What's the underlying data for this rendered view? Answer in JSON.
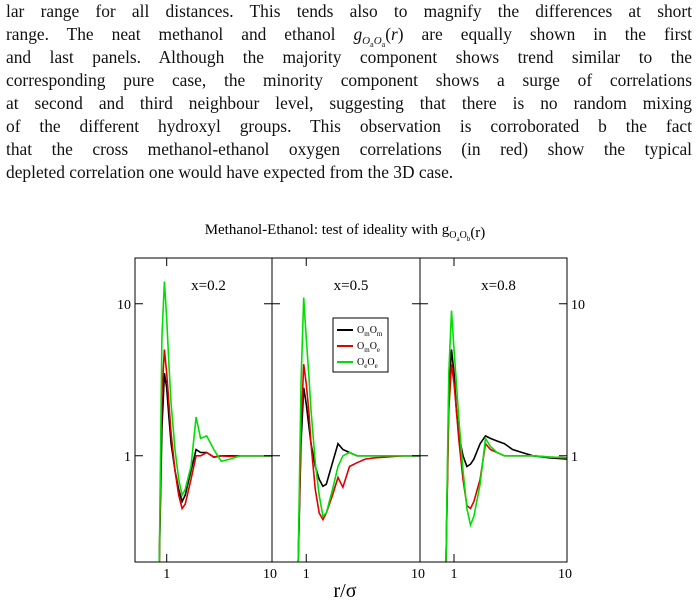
{
  "paragraph": {
    "line1": "lar range for all distances. This tends also to magnify the differences at short",
    "line2": {
      "before": "range. The neat methanol and ethanol",
      "g": "g",
      "o1": "O",
      "s1": "a",
      "o2": "O",
      "s2": "a",
      "open": "(",
      "r": "r",
      "close": ")",
      "after": "are equally shown in the first"
    },
    "line3": "and last panels. Although the majority component shows trend similar to the",
    "line4": "corresponding pure case, the minority component shows a surge of correlations",
    "line5": "at second and third neighbour level, suggesting that there is no random mixing",
    "line6": "of the different hydroxyl groups. This observation is corroborated b the fact",
    "line7": "that the cross methanol-ethanol oxygen correlations (in red) show the typical",
    "line8": "depleted correlation one would have expected from the 3D case."
  },
  "figure": {
    "title": "Methanol-Ethanol: test of ideality with g",
    "title_sub": [
      "O",
      "a",
      "O",
      "b"
    ],
    "title_end": "(r)",
    "xlabel": "r/σ"
  },
  "chart_data": [
    {
      "type": "line",
      "annotation": "x=0.2",
      "log_x": true,
      "log_y": true,
      "x": [
        0.85,
        0.9,
        0.95,
        1.0,
        1.05,
        1.1,
        1.2,
        1.3,
        1.4,
        1.5,
        1.7,
        1.9,
        2.1,
        2.4,
        2.8,
        3.3,
        4,
        5,
        7,
        10
      ],
      "xlim": [
        0.5,
        10
      ],
      "ylim": [
        0.2,
        20
      ],
      "xticks": [
        1,
        10
      ],
      "yticks": [
        1,
        10
      ],
      "ytick_side": "left",
      "series": [
        {
          "color": "#000000",
          "values": [
            0.2,
            1.5,
            3.5,
            2.8,
            1.8,
            1.2,
            0.8,
            0.6,
            0.5,
            0.55,
            0.8,
            1.1,
            1.05,
            1.05,
            0.98,
            1.0,
            1.0,
            1.0,
            1.0,
            1.0
          ]
        },
        {
          "color": "#e00000",
          "values": [
            0.2,
            2.5,
            5.0,
            3.5,
            2.2,
            1.4,
            0.8,
            0.55,
            0.45,
            0.48,
            0.7,
            1.0,
            1.0,
            1.05,
            0.98,
            1.0,
            0.99,
            1.0,
            1.0,
            1.0
          ]
        },
        {
          "color": "#00e000",
          "values": [
            0.2,
            6,
            14,
            8,
            4,
            2.2,
            1.1,
            0.7,
            0.55,
            0.6,
            0.85,
            1.8,
            1.3,
            1.35,
            1.1,
            0.92,
            0.95,
            1.0,
            1.0,
            1.0
          ]
        }
      ]
    },
    {
      "type": "line",
      "annotation": "x=0.5",
      "log_x": true,
      "log_y": true,
      "legend": "upper right",
      "x": [
        0.85,
        0.9,
        0.95,
        1.0,
        1.05,
        1.1,
        1.2,
        1.3,
        1.4,
        1.5,
        1.7,
        1.9,
        2.1,
        2.4,
        2.8,
        3.3,
        4,
        5,
        7,
        10
      ],
      "xlim": [
        0.5,
        10
      ],
      "ylim": [
        0.2,
        20
      ],
      "xticks": [
        1,
        10
      ],
      "yticks": [
        1,
        10
      ],
      "series": [
        {
          "name": "OmOm",
          "color": "#000000",
          "values": [
            0.2,
            1.2,
            2.8,
            2.2,
            1.6,
            1.2,
            0.85,
            0.7,
            0.63,
            0.65,
            0.9,
            1.2,
            1.1,
            1.05,
            1.0,
            1.0,
            1.0,
            1.0,
            1.0,
            1.0
          ]
        },
        {
          "name": "OmOe",
          "color": "#e00000",
          "values": [
            0.2,
            1.5,
            4.0,
            3.0,
            2.0,
            1.2,
            0.6,
            0.42,
            0.38,
            0.42,
            0.55,
            0.72,
            0.62,
            0.85,
            0.9,
            0.95,
            0.97,
            0.98,
            1.0,
            1.0
          ]
        },
        {
          "name": "OeOe",
          "color": "#00e000",
          "values": [
            0.2,
            3,
            11,
            6,
            3.5,
            2.0,
            0.9,
            0.55,
            0.4,
            0.42,
            0.6,
            0.85,
            1.0,
            1.05,
            1.0,
            1.0,
            1.0,
            1.0,
            1.0,
            1.0
          ]
        }
      ]
    },
    {
      "type": "line",
      "annotation": "x=0.8",
      "log_x": true,
      "log_y": true,
      "x": [
        0.85,
        0.9,
        0.95,
        1.0,
        1.05,
        1.1,
        1.2,
        1.3,
        1.4,
        1.5,
        1.7,
        1.9,
        2.1,
        2.4,
        2.8,
        3.3,
        4,
        5,
        7,
        10
      ],
      "xlim": [
        0.5,
        10
      ],
      "ylim": [
        0.2,
        20
      ],
      "xticks": [
        1,
        10
      ],
      "yticks": [
        1,
        10
      ],
      "ytick_side": "right",
      "series": [
        {
          "color": "#000000",
          "values": [
            0.2,
            2.5,
            5,
            3.5,
            2.0,
            1.4,
            1.0,
            0.85,
            0.88,
            0.95,
            1.2,
            1.35,
            1.3,
            1.25,
            1.2,
            1.1,
            1.05,
            1.0,
            0.97,
            0.95
          ]
        },
        {
          "color": "#e00000",
          "values": [
            0.2,
            2,
            4,
            3,
            2,
            1.3,
            0.7,
            0.47,
            0.45,
            0.5,
            0.7,
            1.2,
            1.1,
            1.05,
            1.0,
            1.0,
            1.0,
            1.0,
            0.98,
            0.97
          ]
        },
        {
          "color": "#00e000",
          "values": [
            0.2,
            3.5,
            9,
            5,
            3,
            1.8,
            0.8,
            0.45,
            0.35,
            0.4,
            0.65,
            1.3,
            1.15,
            1.05,
            1.0,
            1.0,
            1.0,
            1.0,
            0.98,
            0.97
          ]
        }
      ]
    }
  ]
}
